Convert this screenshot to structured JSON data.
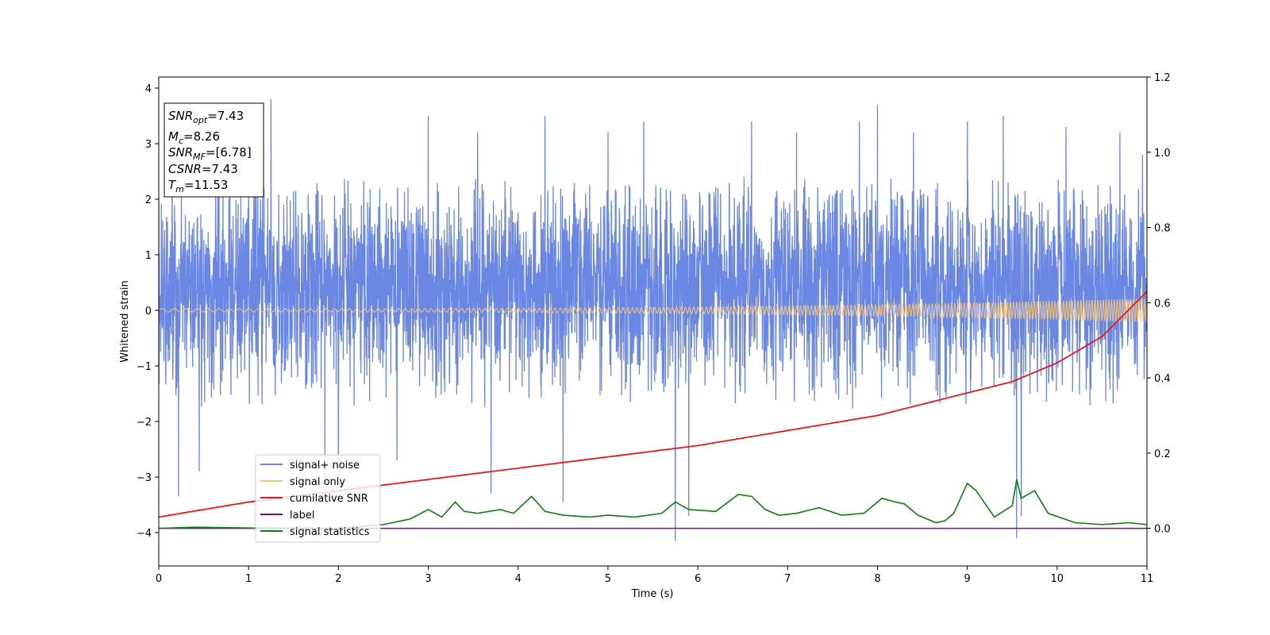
{
  "chart_data": {
    "type": "line",
    "xlabel": "Time (s)",
    "ylabel": "Whitened strain",
    "xlim": [
      0,
      11
    ],
    "ylim": [
      -4.6,
      4.2
    ],
    "y2lim": [
      -0.1,
      1.2
    ],
    "xticks": [
      "0",
      "1",
      "2",
      "3",
      "4",
      "5",
      "6",
      "7",
      "8",
      "9",
      "10",
      "11"
    ],
    "yticks": [
      "−4",
      "−3",
      "−2",
      "−1",
      "0",
      "1",
      "2",
      "3",
      "4"
    ],
    "y2ticks": [
      "0.0",
      "0.2",
      "0.4",
      "0.6",
      "0.8",
      "1.0",
      "1.2"
    ],
    "grid": false,
    "legend_position": "lower-left",
    "annotation": {
      "snr_opt": "=7.43",
      "mc": "=8.26",
      "snr_mf": "=[6.78]",
      "csnr": "=7.43",
      "tm": "=11.53"
    },
    "series": [
      {
        "name": "signal+ noise",
        "color": "#6a87e3",
        "axis": "left",
        "sampled_noise_std": 0.85,
        "envelope_upper": 2.2,
        "envelope_lower": -1.6,
        "spikes": [
          [
            0.15,
            2.6
          ],
          [
            0.22,
            -3.35
          ],
          [
            0.45,
            -2.9
          ],
          [
            1.0,
            3.0
          ],
          [
            1.25,
            3.8
          ],
          [
            1.85,
            -3.05
          ],
          [
            2.0,
            -2.85
          ],
          [
            2.65,
            -2.7
          ],
          [
            3.0,
            3.5
          ],
          [
            3.55,
            3.2
          ],
          [
            3.7,
            -3.3
          ],
          [
            4.3,
            3.5
          ],
          [
            4.5,
            -3.45
          ],
          [
            5.0,
            3.2
          ],
          [
            5.4,
            3.4
          ],
          [
            5.75,
            -4.15
          ],
          [
            5.9,
            -3.7
          ],
          [
            6.6,
            3.4
          ],
          [
            7.1,
            3.2
          ],
          [
            7.8,
            3.4
          ],
          [
            8.0,
            3.7
          ],
          [
            8.4,
            3.2
          ],
          [
            9.0,
            3.4
          ],
          [
            9.4,
            3.5
          ],
          [
            9.55,
            -4.1
          ],
          [
            9.6,
            -3.7
          ],
          [
            10.1,
            3.3
          ],
          [
            10.7,
            3.2
          ],
          [
            10.95,
            2.8
          ]
        ]
      },
      {
        "name": "signal only",
        "color": "#f5c77a",
        "axis": "left",
        "amplitude_start": 0.03,
        "amplitude_end": 0.22
      },
      {
        "name": "cumilative SNR",
        "color": "#e8191c",
        "axis": "right",
        "x": [
          0,
          1,
          2,
          3,
          4,
          5,
          6,
          7,
          8,
          9,
          9.5,
          10,
          10.5,
          11
        ],
        "y": [
          0.03,
          0.07,
          0.1,
          0.13,
          0.16,
          0.19,
          0.22,
          0.26,
          0.3,
          0.36,
          0.39,
          0.44,
          0.51,
          0.63
        ]
      },
      {
        "name": "label",
        "color": "#7d0e8e",
        "axis": "right",
        "x": [
          0,
          11
        ],
        "y": [
          0.0,
          0.0
        ]
      },
      {
        "name": "signal statistics",
        "color": "#0e800e",
        "axis": "right",
        "x": [
          0,
          0.4,
          1,
          2,
          2.5,
          2.8,
          3.0,
          3.15,
          3.3,
          3.4,
          3.55,
          3.8,
          3.95,
          4.15,
          4.3,
          4.5,
          4.8,
          5.0,
          5.3,
          5.6,
          5.75,
          5.9,
          6.2,
          6.45,
          6.6,
          6.75,
          6.9,
          7.1,
          7.35,
          7.6,
          7.85,
          8.05,
          8.2,
          8.3,
          8.45,
          8.65,
          8.75,
          8.85,
          9.0,
          9.1,
          9.3,
          9.5,
          9.55,
          9.6,
          9.75,
          9.9,
          10.2,
          10.5,
          10.8,
          11
        ],
        "y": [
          0.0,
          0.003,
          0.001,
          0.0,
          0.01,
          0.025,
          0.05,
          0.03,
          0.07,
          0.045,
          0.04,
          0.05,
          0.04,
          0.085,
          0.045,
          0.035,
          0.03,
          0.035,
          0.03,
          0.04,
          0.07,
          0.05,
          0.045,
          0.09,
          0.085,
          0.05,
          0.035,
          0.04,
          0.055,
          0.035,
          0.04,
          0.08,
          0.07,
          0.065,
          0.035,
          0.015,
          0.02,
          0.04,
          0.12,
          0.1,
          0.03,
          0.06,
          0.13,
          0.08,
          0.1,
          0.04,
          0.015,
          0.01,
          0.015,
          0.01
        ]
      }
    ]
  }
}
